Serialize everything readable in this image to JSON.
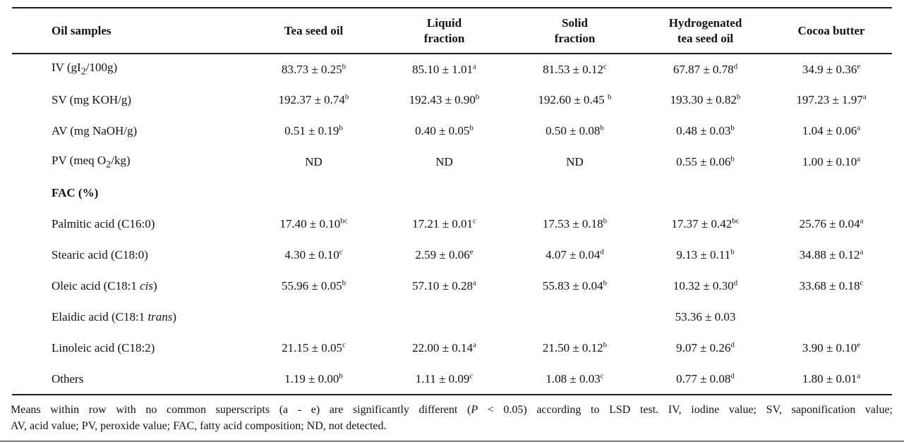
{
  "table": {
    "columns": [
      "Oil samples",
      "Tea seed oil",
      "Liquid\nfraction",
      "Solid\nfraction",
      "Hydrogenated\ntea seed oil",
      "Cocoa butter"
    ],
    "rows": [
      {
        "label": "IV (gI~2~/100g)",
        "bold": false,
        "values": [
          {
            "v": "83.73 ± 0.25",
            "s": "b"
          },
          {
            "v": "85.10 ± 1.01",
            "s": "a"
          },
          {
            "v": "81.53 ± 0.12",
            "s": "c"
          },
          {
            "v": "67.87 ± 0.78",
            "s": "d"
          },
          {
            "v": "34.9 ± 0.36",
            "s": "e"
          }
        ]
      },
      {
        "label": "SV (mg KOH/g)",
        "bold": false,
        "values": [
          {
            "v": "192.37 ± 0.74",
            "s": "b"
          },
          {
            "v": "192.43 ± 0.90",
            "s": "b"
          },
          {
            "v": "192.60 ± 0.45 ",
            "s": "b"
          },
          {
            "v": "193.30 ± 0.82",
            "s": "b"
          },
          {
            "v": "197.23 ± 1.97",
            "s": "a"
          }
        ]
      },
      {
        "label": "AV (mg NaOH/g)",
        "bold": false,
        "values": [
          {
            "v": "0.51 ± 0.19",
            "s": "b"
          },
          {
            "v": "0.40 ± 0.05",
            "s": "b"
          },
          {
            "v": "0.50 ± 0.08",
            "s": "b"
          },
          {
            "v": "0.48 ± 0.03",
            "s": "b"
          },
          {
            "v": "1.04 ± 0.06",
            "s": "a"
          }
        ]
      },
      {
        "label": "PV (meq O~2~/kg)",
        "bold": false,
        "values": [
          {
            "v": "ND",
            "s": ""
          },
          {
            "v": "ND",
            "s": ""
          },
          {
            "v": "ND",
            "s": ""
          },
          {
            "v": "0.55 ± 0.06",
            "s": "b"
          },
          {
            "v": "1.00 ± 0.10",
            "s": "a"
          }
        ]
      },
      {
        "label": "FAC (%)",
        "bold": true,
        "values": [
          null,
          null,
          null,
          null,
          null
        ]
      },
      {
        "label": "Palmitic acid (C16:0)",
        "bold": false,
        "values": [
          {
            "v": "17.40 ± 0.10",
            "s": "bc"
          },
          {
            "v": "17.21 ± 0.01",
            "s": "c"
          },
          {
            "v": "17.53 ± 0.18",
            "s": "b"
          },
          {
            "v": "17.37 ± 0.42",
            "s": "bc"
          },
          {
            "v": "25.76 ± 0.04",
            "s": "a"
          }
        ]
      },
      {
        "label": "Stearic acid (C18:0)",
        "bold": false,
        "values": [
          {
            "v": "4.30 ± 0.10",
            "s": "c"
          },
          {
            "v": "2.59 ± 0.06",
            "s": "e"
          },
          {
            "v": "4.07 ± 0.04",
            "s": "d"
          },
          {
            "v": "9.13 ± 0.11",
            "s": "b"
          },
          {
            "v": "34.88 ± 0.12",
            "s": "a"
          }
        ]
      },
      {
        "label": "Oleic acid (C18:1 *cis*)",
        "bold": false,
        "values": [
          {
            "v": "55.96 ± 0.05",
            "s": "b"
          },
          {
            "v": "57.10 ± 0.28",
            "s": "a"
          },
          {
            "v": "55.83 ± 0.04",
            "s": "b"
          },
          {
            "v": "10.32 ± 0.30",
            "s": "d"
          },
          {
            "v": "33.68 ± 0.18",
            "s": "c"
          }
        ]
      },
      {
        "label": "Elaidic acid (C18:1 *trans*)",
        "bold": false,
        "values": [
          null,
          null,
          null,
          {
            "v": "53.36 ± 0.03",
            "s": ""
          },
          null
        ]
      },
      {
        "label": "Linoleic acid (C18:2)",
        "bold": false,
        "values": [
          {
            "v": "21.15 ± 0.05",
            "s": "c"
          },
          {
            "v": "22.00 ± 0.14",
            "s": "a"
          },
          {
            "v": "21.50 ± 0.12",
            "s": "b"
          },
          {
            "v": "9.07 ± 0.26",
            "s": "d"
          },
          {
            "v": "3.90 ± 0.10",
            "s": "e"
          }
        ]
      },
      {
        "label": "Others",
        "bold": false,
        "values": [
          {
            "v": "1.19 ± 0.00",
            "s": "b"
          },
          {
            "v": "1.11 ± 0.09",
            "s": "c"
          },
          {
            "v": "1.08 ± 0.03",
            "s": "c"
          },
          {
            "v": "0.77 ± 0.08",
            "s": "d"
          },
          {
            "v": "1.80 ± 0.01",
            "s": "a"
          }
        ]
      }
    ]
  },
  "footnote": {
    "line1": "Means within row with no common superscripts (a - e) are significantly different (*P* < 0.05) according to LSD test. IV, iodine value; SV, saponification value;",
    "line2": "AV, acid value; PV, peroxide value; FAC, fatty acid composition; ND, not detected."
  }
}
